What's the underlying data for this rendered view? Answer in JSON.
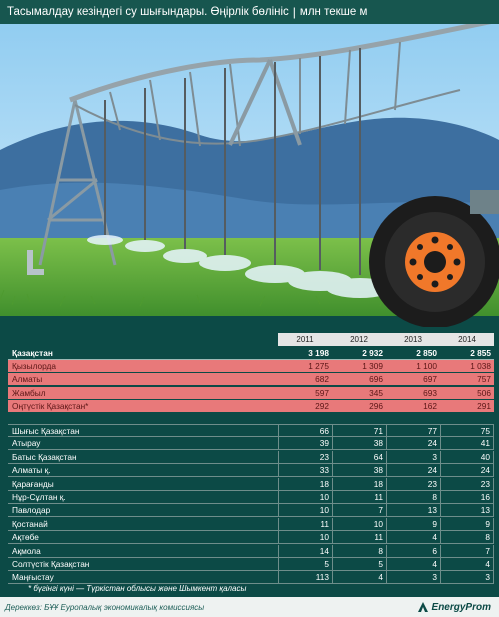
{
  "header": {
    "title": "Тасымалдау кезіндегі су шығындары. Өңірлік бөлініс",
    "separator": "|",
    "unit": "млн текше м"
  },
  "chart_data": {
    "type": "table",
    "columns": [
      "2011",
      "2012",
      "2013",
      "2014"
    ],
    "total": {
      "name": "Қазақстан",
      "values": [
        "3 198",
        "2 932",
        "2 850",
        "2 855"
      ]
    },
    "highlighted_rows": [
      {
        "name": "Қызылорда",
        "values": [
          "1 275",
          "1 309",
          "1 100",
          "1 038"
        ]
      },
      {
        "name": "Алматы",
        "values": [
          "682",
          "696",
          "697",
          "757"
        ]
      },
      {
        "name": "Жамбыл",
        "values": [
          "597",
          "345",
          "693",
          "506"
        ]
      },
      {
        "name": "Оңтүстік Қазақстан*",
        "values": [
          "292",
          "296",
          "162",
          "291"
        ]
      }
    ],
    "rows": [
      {
        "name": "Шығыс Қазақстан",
        "values": [
          "66",
          "71",
          "77",
          "75"
        ]
      },
      {
        "name": "Атырау",
        "values": [
          "39",
          "38",
          "24",
          "41"
        ]
      },
      {
        "name": "Батыс Қазақстан",
        "values": [
          "23",
          "64",
          "3",
          "40"
        ]
      },
      {
        "name": "Алматы қ.",
        "values": [
          "33",
          "38",
          "24",
          "24"
        ]
      },
      {
        "name": "Қарағанды",
        "values": [
          "18",
          "18",
          "23",
          "23"
        ]
      },
      {
        "name": "Нұр-Сұлтан қ.",
        "values": [
          "10",
          "11",
          "8",
          "16"
        ]
      },
      {
        "name": "Павлодар",
        "values": [
          "10",
          "7",
          "13",
          "13"
        ]
      },
      {
        "name": "Қостанай",
        "values": [
          "11",
          "10",
          "9",
          "9"
        ]
      },
      {
        "name": "Ақтөбе",
        "values": [
          "10",
          "11",
          "4",
          "8"
        ]
      },
      {
        "name": "Ақмола",
        "values": [
          "14",
          "8",
          "6",
          "7"
        ]
      },
      {
        "name": "Солтүстік Қазақстан",
        "values": [
          "5",
          "5",
          "4",
          "4"
        ]
      },
      {
        "name": "Маңғыстау",
        "values": [
          "113",
          "4",
          "3",
          "3"
        ]
      }
    ]
  },
  "footnote": "* бүгінгі күні — Түркістан облысы және Шымкент қаласы",
  "source": "Дереккөз: БҰҰ Еуропалық экономикалық комиссиясы",
  "brand": "EnergyProm",
  "colors": {
    "background": "#0c4a46",
    "highlight": "#e8797a",
    "header_cell": "#e5e5e5",
    "sky": "#a9d7f2",
    "grass": "#5dae3c"
  }
}
